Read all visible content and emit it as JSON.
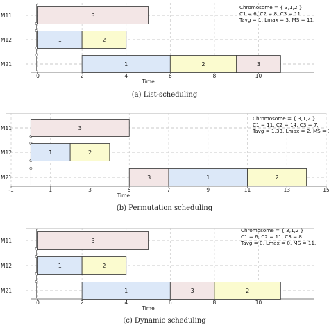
{
  "colors": {
    "job1": "#dce8f8",
    "job2": "#fbfbcf",
    "job3": "#f3e6e6"
  },
  "panels": [
    {
      "caption": "(a)  List-scheduling",
      "xlabel": "Time",
      "ticks": [
        "0",
        "2",
        "4",
        "6",
        "8",
        "10"
      ],
      "tick_values": [
        0,
        2,
        4,
        6,
        8,
        10
      ],
      "xrange": [
        -0.3,
        12.5
      ],
      "rows": [
        "M11",
        "M12",
        "M21"
      ],
      "info": [
        "Chromosome = { 3,1,2 }",
        "C1 = 6, C2 = 8, C3 = 11.",
        "Tavg = 1, Lmax = 3, MS = 11."
      ],
      "ops": [
        {
          "row": 0,
          "start": 0,
          "end": 5,
          "label": "3",
          "job": "job3"
        },
        {
          "row": 1,
          "start": 0,
          "end": 2,
          "label": "1",
          "job": "job1"
        },
        {
          "row": 1,
          "start": 2,
          "end": 4,
          "label": "2",
          "job": "job2"
        },
        {
          "row": 2,
          "start": 2,
          "end": 6,
          "label": "1",
          "job": "job1"
        },
        {
          "row": 2,
          "start": 6,
          "end": 9,
          "label": "2",
          "job": "job2"
        },
        {
          "row": 2,
          "start": 9,
          "end": 11,
          "label": "3",
          "job": "job3"
        }
      ]
    },
    {
      "caption": "(b)  Permutation scheduling",
      "xlabel": "Time",
      "ticks": [
        "-1",
        "1",
        "3",
        "5",
        "7",
        "9",
        "11",
        "13",
        "15"
      ],
      "tick_values": [
        -1,
        1,
        3,
        5,
        7,
        9,
        11,
        13,
        15
      ],
      "xrange": [
        -1,
        15
      ],
      "rows": [
        "M11",
        "M12",
        "M21"
      ],
      "info": [
        "Chromosome = { 3,1,2 }",
        "C1 = 11, C2 = 14, C3 = 7.",
        "Tavg = 1.33, Lmax = 2, MS = 14."
      ],
      "ops": [
        {
          "row": 0,
          "start": 0,
          "end": 5,
          "label": "3",
          "job": "job3"
        },
        {
          "row": 1,
          "start": 0,
          "end": 2,
          "label": "1",
          "job": "job1"
        },
        {
          "row": 1,
          "start": 2,
          "end": 4,
          "label": "2",
          "job": "job2"
        },
        {
          "row": 2,
          "start": 5,
          "end": 7,
          "label": "3",
          "job": "job3"
        },
        {
          "row": 2,
          "start": 7,
          "end": 11,
          "label": "1",
          "job": "job1"
        },
        {
          "row": 2,
          "start": 11,
          "end": 14,
          "label": "2",
          "job": "job2"
        }
      ]
    },
    {
      "caption": "(c)  Dynamic scheduling",
      "xlabel": "Time",
      "ticks": [
        "0",
        "2",
        "4",
        "6",
        "8",
        "10"
      ],
      "tick_values": [
        0,
        2,
        4,
        6,
        8,
        10
      ],
      "xrange": [
        -0.3,
        12.5
      ],
      "rows": [
        "M11",
        "M12",
        "M21"
      ],
      "info": [
        "Chromosome = { 3,1,2 }",
        "C1 = 6, C2 = 11, C3 = 8.",
        "Tavg = 0, Lmax = 0, MS = 11."
      ],
      "ops": [
        {
          "row": 0,
          "start": 0,
          "end": 5,
          "label": "3",
          "job": "job3"
        },
        {
          "row": 1,
          "start": 0,
          "end": 2,
          "label": "1",
          "job": "job1"
        },
        {
          "row": 1,
          "start": 2,
          "end": 4,
          "label": "2",
          "job": "job2"
        },
        {
          "row": 2,
          "start": 2,
          "end": 6,
          "label": "1",
          "job": "job1"
        },
        {
          "row": 2,
          "start": 6,
          "end": 8,
          "label": "3",
          "job": "job3"
        },
        {
          "row": 2,
          "start": 8,
          "end": 11,
          "label": "2",
          "job": "job2"
        }
      ]
    }
  ]
}
